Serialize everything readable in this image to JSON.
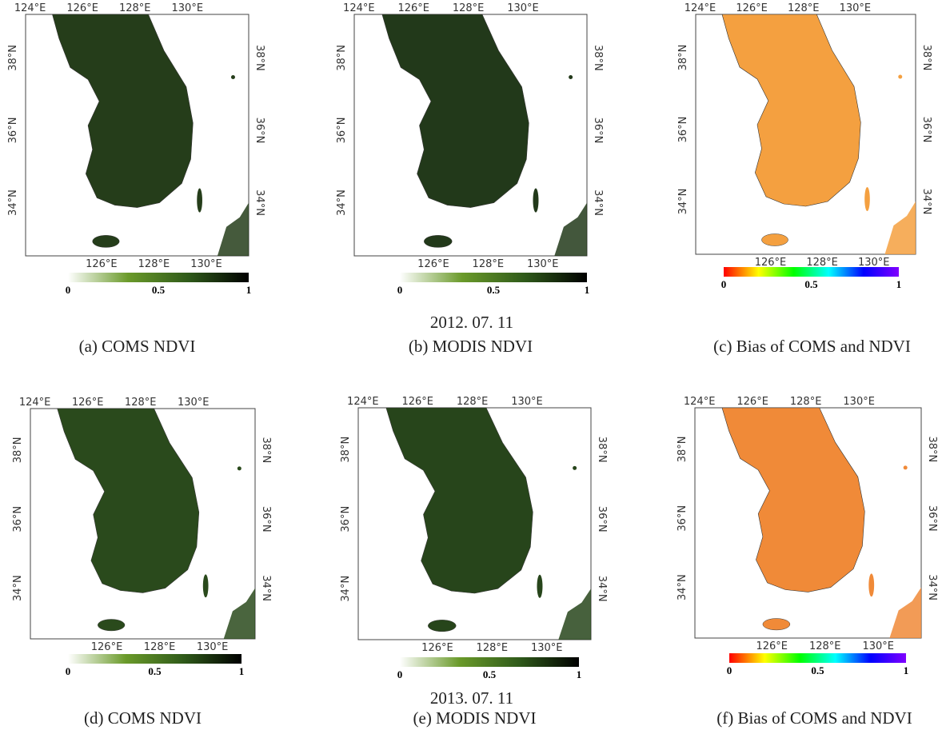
{
  "date_rows": [
    "2012. 07. 11",
    "2013. 07. 11"
  ],
  "panels": [
    {
      "caption": "(a) COMS NDVI",
      "top_ticks": [
        "124°E",
        "126°E",
        "128°E",
        "130°E"
      ],
      "bottom_ticks": [
        "126°E",
        "128°E",
        "130°E"
      ],
      "left_ticks": [
        "38°N",
        "36°N",
        "34°N"
      ],
      "right_ticks": [
        "38°N",
        "36°N",
        "34°N"
      ],
      "colorbar_labels": [
        "0",
        "0.5",
        "1"
      ],
      "colorbar_colors": [
        "#ffffff",
        "#6a9a2a",
        "#2f5a1a",
        "#000000"
      ],
      "land_color": "#253d1a"
    },
    {
      "caption": "(b) MODIS NDVI",
      "top_ticks": [
        "124°E",
        "126°E",
        "128°E",
        "130°E"
      ],
      "bottom_ticks": [
        "126°E",
        "128°E",
        "130°E"
      ],
      "left_ticks": [
        "38°N",
        "36°N",
        "34°N"
      ],
      "right_ticks": [
        "38°N",
        "36°N",
        "34°N"
      ],
      "colorbar_labels": [
        "0",
        "0.5",
        "1"
      ],
      "colorbar_colors": [
        "#ffffff",
        "#6a9a2a",
        "#2f5a1a",
        "#000000"
      ],
      "land_color": "#22391a"
    },
    {
      "caption": "(c) Bias of COMS and NDVI",
      "top_ticks": [
        "124°E",
        "126°E",
        "128°E",
        "130°E"
      ],
      "bottom_ticks": [
        "126°E",
        "128°E",
        "130°E"
      ],
      "left_ticks": [
        "38°N",
        "36°N",
        "34°N"
      ],
      "right_ticks": [
        "38°N",
        "36°N",
        "34°N"
      ],
      "colorbar_labels": [
        "0",
        "0.5",
        "1"
      ],
      "colorbar_colors": [
        "#ff0000",
        "#ffff00",
        "#00ff00",
        "#00ffff",
        "#0000ff",
        "#8000ff"
      ],
      "land_color": "#f4a040"
    },
    {
      "caption": "(d) COMS NDVI",
      "top_ticks": [
        "124°E",
        "126°E",
        "128°E",
        "130°E"
      ],
      "bottom_ticks": [
        "126°E",
        "128°E",
        "130°E"
      ],
      "left_ticks": [
        "38°N",
        "36°N",
        "34°N"
      ],
      "right_ticks": [
        "38°N",
        "36°N",
        "34°N"
      ],
      "colorbar_labels": [
        "0",
        "0.5",
        "1"
      ],
      "colorbar_colors": [
        "#ffffff",
        "#6a9a2a",
        "#2f5a1a",
        "#000000"
      ],
      "land_color": "#2a4a1c"
    },
    {
      "caption": "(e) MODIS NDVI",
      "top_ticks": [
        "124°E",
        "126°E",
        "128°E",
        "130°E"
      ],
      "bottom_ticks": [
        "126°E",
        "128°E",
        "130°E"
      ],
      "left_ticks": [
        "38°N",
        "36°N",
        "34°N"
      ],
      "right_ticks": [
        "38°N",
        "36°N",
        "34°N"
      ],
      "colorbar_labels": [
        "0",
        "0.5",
        "1"
      ],
      "colorbar_colors": [
        "#ffffff",
        "#6a9a2a",
        "#2f5a1a",
        "#000000"
      ],
      "land_color": "#27451b"
    },
    {
      "caption": "(f) Bias of COMS and NDVI",
      "top_ticks": [
        "124°E",
        "126°E",
        "128°E",
        "130°E"
      ],
      "bottom_ticks": [
        "126°E",
        "128°E",
        "130°E"
      ],
      "left_ticks": [
        "38°N",
        "36°N",
        "34°N"
      ],
      "right_ticks": [
        "38°N",
        "36°N",
        "34°N"
      ],
      "colorbar_labels": [
        "0",
        "0.5",
        "1"
      ],
      "colorbar_colors": [
        "#ff0000",
        "#ffff00",
        "#00ff00",
        "#00ffff",
        "#0000ff",
        "#8000ff"
      ],
      "land_color": "#f08a38"
    }
  ]
}
